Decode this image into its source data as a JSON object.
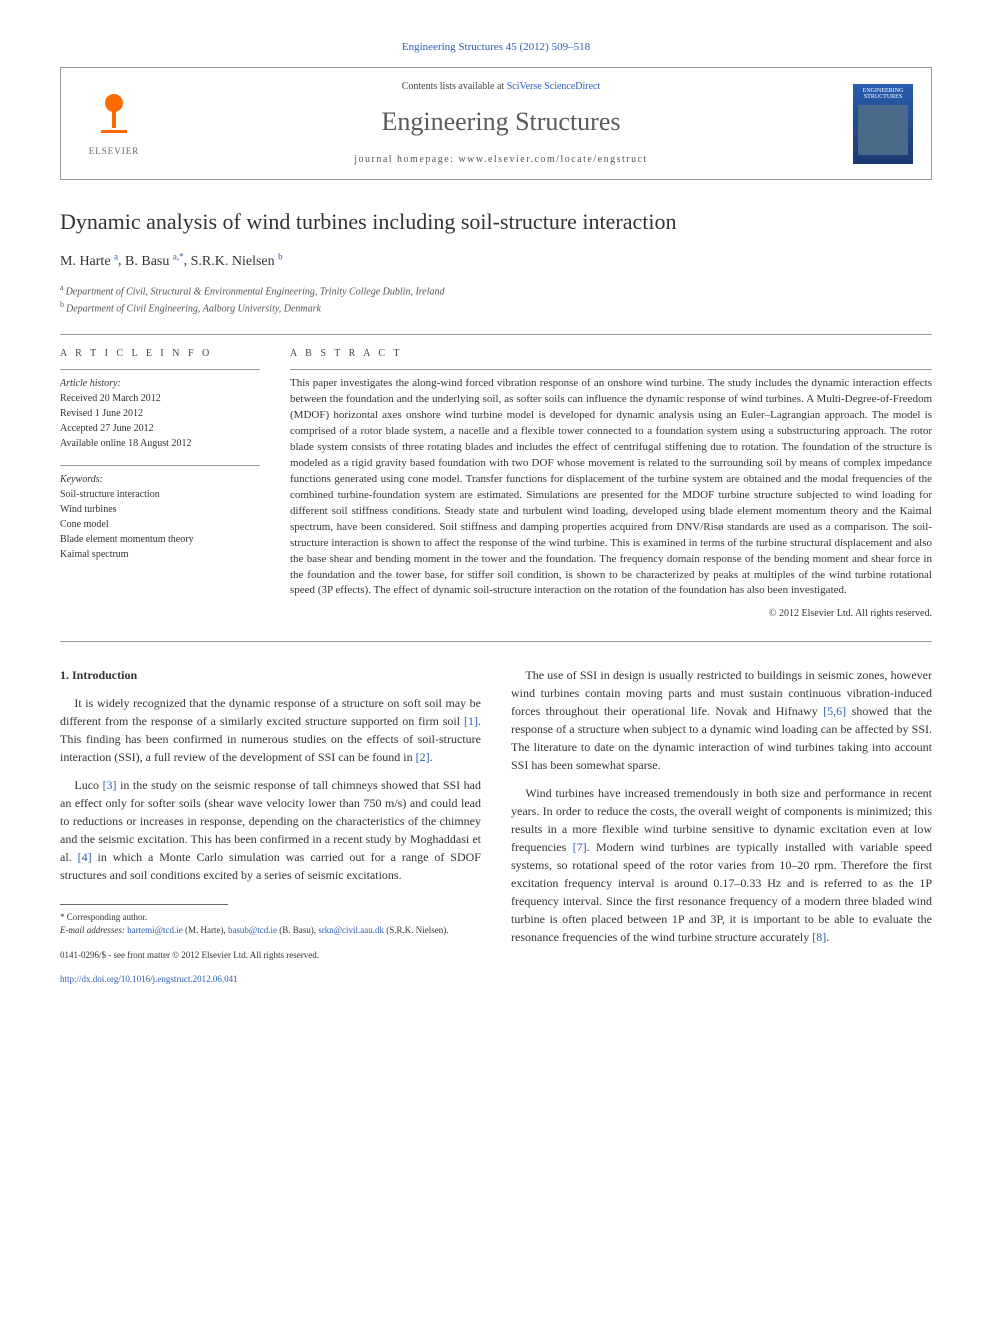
{
  "citation": {
    "journal_link_text": "Engineering Structures 45 (2012) 509–518",
    "journal_link_color": "#2a5db0"
  },
  "masthead": {
    "elsevier_label": "ELSEVIER",
    "contents_prefix": "Contents lists available at ",
    "contents_link": "SciVerse ScienceDirect",
    "journal_name": "Engineering Structures",
    "homepage_prefix": "journal homepage: ",
    "homepage_url": "www.elsevier.com/locate/engstruct",
    "cover_title": "ENGINEERING STRUCTURES"
  },
  "title": "Dynamic analysis of wind turbines including soil-structure interaction",
  "authors_html": "M. Harte|a|, B. Basu|a,*|, S.R.K. Nielsen|b|",
  "authors": [
    {
      "name": "M. Harte",
      "aff": "a",
      "corr": false
    },
    {
      "name": "B. Basu",
      "aff": "a",
      "corr": true
    },
    {
      "name": "S.R.K. Nielsen",
      "aff": "b",
      "corr": false
    }
  ],
  "affiliations": [
    {
      "sup": "a",
      "text": "Department of Civil, Structural & Environmental Engineering, Trinity College Dublin, Ireland"
    },
    {
      "sup": "b",
      "text": "Department of Civil Engineering, Aalborg University, Denmark"
    }
  ],
  "article_info": {
    "heading": "A R T I C L E   I N F O",
    "history_heading": "Article history:",
    "history": [
      "Received 20 March 2012",
      "Revised 1 June 2012",
      "Accepted 27 June 2012",
      "Available online 18 August 2012"
    ],
    "keywords_heading": "Keywords:",
    "keywords": [
      "Soil-structure interaction",
      "Wind turbines",
      "Cone model",
      "Blade element momentum theory",
      "Kaimal spectrum"
    ]
  },
  "abstract": {
    "heading": "A B S T R A C T",
    "text": "This paper investigates the along-wind forced vibration response of an onshore wind turbine. The study includes the dynamic interaction effects between the foundation and the underlying soil, as softer soils can influence the dynamic response of wind turbines. A Multi-Degree-of-Freedom (MDOF) horizontal axes onshore wind turbine model is developed for dynamic analysis using an Euler–Lagrangian approach. The model is comprised of a rotor blade system, a nacelle and a flexible tower connected to a foundation system using a substructuring approach. The rotor blade system consists of three rotating blades and includes the effect of centrifugal stiffening due to rotation. The foundation of the structure is modeled as a rigid gravity based foundation with two DOF whose movement is related to the surrounding soil by means of complex impedance functions generated using cone model. Transfer functions for displacement of the turbine system are obtained and the modal frequencies of the combined turbine-foundation system are estimated. Simulations are presented for the MDOF turbine structure subjected to wind loading for different soil stiffness conditions. Steady state and turbulent wind loading, developed using blade element momentum theory and the Kaimal spectrum, have been considered. Soil stiffness and damping properties acquired from DNV/Risø standards are used as a comparison. The soil-structure interaction is shown to affect the response of the wind turbine. This is examined in terms of the turbine structural displacement and also the base shear and bending moment in the tower and the foundation. The frequency domain response of the bending moment and shear force in the foundation and the tower base, for stiffer soil condition, is shown to be characterized by peaks at multiples of the wind turbine rotational speed (3P effects). The effect of dynamic soil-structure interaction on the rotation of the foundation has also been investigated.",
    "copyright": "© 2012 Elsevier Ltd. All rights reserved."
  },
  "body": {
    "section_heading": "1. Introduction",
    "col1_paras": [
      "It is widely recognized that the dynamic response of a structure on soft soil may be different from the response of a similarly excited structure supported on firm soil [1]. This finding has been confirmed in numerous studies on the effects of soil-structure interaction (SSI), a full review of the development of SSI can be found in [2].",
      "Luco [3] in the study on the seismic response of tall chimneys showed that SSI had an effect only for softer soils (shear wave velocity lower than 750 m/s) and could lead to reductions or increases in response, depending on the characteristics of the chimney and the seismic excitation. This has been confirmed in a recent study by Moghaddasi et al. [4] in which a Monte Carlo simulation was carried out for a range of SDOF structures and soil conditions excited by a series of seismic excitations."
    ],
    "col2_paras": [
      "The use of SSI in design is usually restricted to buildings in seismic zones, however wind turbines contain moving parts and must sustain continuous vibration-induced forces throughout their operational life. Novak and Hifnawy [5,6] showed that the response of a structure when subject to a dynamic wind loading can be affected by SSI. The literature to date on the dynamic interaction of wind turbines taking into account SSI has been somewhat sparse.",
      "Wind turbines have increased tremendously in both size and performance in recent years. In order to reduce the costs, the overall weight of components is minimized; this results in a more flexible wind turbine sensitive to dynamic excitation even at low frequencies [7]. Modern wind turbines are typically installed with variable speed systems, so rotational speed of the rotor varies from 10–20 rpm. Therefore the first excitation frequency interval is around 0.17–0.33 Hz and is referred to as the 1P frequency interval. Since the first resonance frequency of a modern three bladed wind turbine is often placed between 1P and 3P, it is important to be able to evaluate the resonance frequencies of the wind turbine structure accurately [8]."
    ]
  },
  "footnotes": {
    "corr_label": "* Corresponding author.",
    "email_label": "E-mail addresses:",
    "emails": [
      {
        "addr": "hartemi@tcd.ie",
        "who": "(M. Harte)"
      },
      {
        "addr": "basub@tcd.ie",
        "who": "(B. Basu)"
      },
      {
        "addr": "srkn@civil.aau.dk",
        "who": "(S.R.K. Nielsen)"
      }
    ]
  },
  "footer": {
    "issn_line": "0141-0296/$ - see front matter © 2012 Elsevier Ltd. All rights reserved.",
    "doi": "http://dx.doi.org/10.1016/j.engstruct.2012.06.041"
  },
  "ref_links": [
    "[1]",
    "[2]",
    "[3]",
    "[4]",
    "[5,6]",
    "[7]",
    "[8]"
  ],
  "colors": {
    "link": "#2a5db0",
    "elsevier_orange": "#ff6a00",
    "text": "#333333",
    "rule": "#999999"
  }
}
